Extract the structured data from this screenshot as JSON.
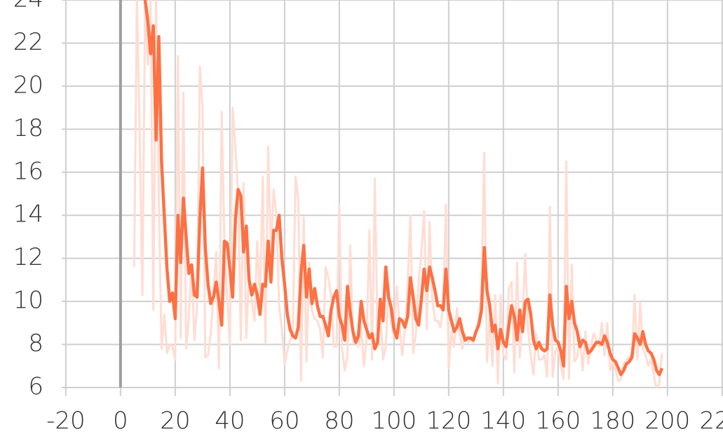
{
  "chart_data": {
    "type": "line",
    "x": [
      5,
      6,
      7,
      8,
      9,
      10,
      11,
      12,
      13,
      14,
      15,
      16,
      17,
      18,
      19,
      20,
      21,
      22,
      23,
      24,
      25,
      26,
      27,
      28,
      29,
      30,
      31,
      32,
      33,
      34,
      35,
      36,
      37,
      38,
      39,
      40,
      41,
      42,
      43,
      44,
      45,
      46,
      47,
      48,
      49,
      50,
      51,
      52,
      53,
      54,
      55,
      56,
      57,
      58,
      59,
      60,
      61,
      62,
      63,
      64,
      65,
      66,
      67,
      68,
      69,
      70,
      71,
      72,
      73,
      74,
      75,
      76,
      77,
      78,
      79,
      80,
      81,
      82,
      83,
      84,
      85,
      86,
      87,
      88,
      89,
      90,
      91,
      92,
      93,
      94,
      95,
      96,
      97,
      98,
      99,
      100,
      101,
      102,
      103,
      104,
      105,
      106,
      107,
      108,
      109,
      110,
      111,
      112,
      113,
      114,
      115,
      116,
      117,
      118,
      119,
      120,
      121,
      122,
      123,
      124,
      125,
      126,
      127,
      128,
      129,
      130,
      131,
      132,
      133,
      134,
      135,
      136,
      137,
      138,
      139,
      140,
      141,
      142,
      143,
      144,
      145,
      146,
      147,
      148,
      149,
      150,
      151,
      152,
      153,
      154,
      155,
      156,
      157,
      158,
      159,
      160,
      161,
      162,
      163,
      164,
      165,
      166,
      167,
      168,
      169,
      170,
      171,
      172,
      173,
      174,
      175,
      176,
      177,
      178,
      179,
      180,
      181,
      182,
      183,
      184,
      185,
      186,
      187,
      188,
      189,
      190,
      191,
      192,
      193,
      194,
      195,
      196,
      197,
      198
    ],
    "series": [
      {
        "color": "#ffddd3",
        "values": [
          11.6,
          24,
          18,
          10.3,
          24,
          21,
          24,
          9.6,
          24,
          15,
          7.8,
          9.4,
          7.6,
          8,
          7.9,
          7.3,
          21.4,
          8.3,
          19.7,
          7.8,
          9.3,
          11.7,
          8.2,
          9.8,
          20.9,
          19,
          7.4,
          7.5,
          8.5,
          10.4,
          12.3,
          6.9,
          18.8,
          12.6,
          10.2,
          8,
          19,
          17.1,
          15.1,
          8.2,
          15.5,
          8.3,
          11.4,
          10,
          9.1,
          12.8,
          10,
          15.8,
          8.1,
          17.2,
          12.2,
          15.2,
          14,
          9.8,
          8.7,
          7.1,
          7.7,
          8.2,
          8.5,
          15.8,
          14.8,
          6.3,
          13.9,
          7.2,
          11.8,
          9.6,
          9.2,
          9.1,
          8.7,
          7.4,
          11.6,
          11.1,
          10.3,
          7.9,
          7.9,
          14.5,
          7.8,
          6.8,
          7.5,
          12.6,
          8.1,
          8.3,
          7.9,
          8.8,
          7,
          8.3,
          13.3,
          7.3,
          15.7,
          8.3,
          9.5,
          7.3,
          7.9,
          10.8,
          9,
          8.4,
          10.7,
          8.9,
          7.5,
          8.7,
          10.8,
          14,
          7.6,
          8.5,
          10.9,
          12.2,
          14.2,
          8.7,
          13.7,
          10.1,
          9.1,
          9.1,
          8.8,
          9.9,
          14.5,
          6.9,
          8.6,
          7.9,
          9.7,
          8.5,
          7.8,
          8.5,
          8.1,
          8.2,
          8.1,
          8.6,
          9.2,
          10.6,
          16.9,
          7.2,
          9.2,
          7,
          10.3,
          6.2,
          10.3,
          7.5,
          7.3,
          10.6,
          10.9,
          6.7,
          11.8,
          7.4,
          9.2,
          12.2,
          8.7,
          7.5,
          6.6,
          8.5,
          7.3,
          7.3,
          7.5,
          6.5,
          14.4,
          6.5,
          7.7,
          7.9,
          7,
          6.4,
          16.5,
          6.4,
          11.7,
          7.2,
          7.4,
          8.4,
          6.8,
          8.6,
          7.1,
          7.9,
          8.5,
          8.2,
          7.9,
          9,
          7.5,
          9,
          6.8,
          7.2,
          6.8,
          6.3,
          6.4,
          7.1,
          7.3,
          7.4,
          7.5,
          10.3,
          7.3,
          9.9,
          7.8,
          7.5,
          7,
          7.3,
          6.6,
          5.9,
          6.2,
          7.6
        ]
      },
      {
        "color": "#ff7043",
        "values": [
          null,
          null,
          null,
          null,
          24,
          23,
          21.5,
          22.8,
          17.5,
          22.3,
          16.5,
          14,
          11.5,
          10,
          10.4,
          9.2,
          14,
          11.8,
          14.8,
          13,
          11.3,
          11.7,
          10.3,
          10.2,
          13.8,
          16.2,
          12.5,
          10.8,
          9.9,
          10.2,
          10.9,
          10,
          8.9,
          12.8,
          12.7,
          11.5,
          10.2,
          13.8,
          15.2,
          14.9,
          12.3,
          13.5,
          11,
          10.3,
          10.8,
          10.3,
          9.4,
          10.8,
          10.7,
          12.8,
          10.9,
          13.3,
          13.3,
          14,
          12,
          10.8,
          9.4,
          8.7,
          8.4,
          8.3,
          8.8,
          11.3,
          12.6,
          10.2,
          11.5,
          9.9,
          10.6,
          9.8,
          9.3,
          9.3,
          8.9,
          8.4,
          9.6,
          10.2,
          10.5,
          9.3,
          8.9,
          8.2,
          10.7,
          9.5,
          8.6,
          8.1,
          8.4,
          10,
          9.1,
          8.7,
          8.3,
          8.5,
          7.8,
          8.1,
          10.1,
          9.1,
          11.6,
          10.2,
          9.7,
          8.7,
          8.3,
          9.2,
          9.1,
          8.8,
          9.3,
          11.1,
          10.2,
          9.2,
          8.9,
          10.1,
          11.5,
          10.5,
          11.6,
          11.1,
          10.5,
          9.8,
          9.8,
          9.6,
          11.5,
          9.6,
          9.1,
          8.6,
          8.8,
          9.2,
          8.6,
          8.2,
          8.3,
          8.3,
          8.2,
          8.6,
          8.9,
          9.6,
          12.5,
          10.5,
          9.8,
          8.6,
          8.9,
          7.8,
          8.7,
          8.1,
          7.9,
          8.9,
          9.8,
          9.3,
          8.2,
          9.6,
          8.6,
          10,
          10.1,
          9.4,
          8.2,
          7.8,
          8.1,
          7.8,
          7.7,
          7.8,
          10.3,
          8.9,
          8.2,
          8.1,
          7.7,
          7,
          10.7,
          9.2,
          10,
          9,
          8.6,
          7.9,
          8.2,
          8.1,
          7.6,
          7.7,
          7.9,
          8.1,
          8.1,
          8,
          8.4,
          8.1,
          7.6,
          7.3,
          7.2,
          6.9,
          6.6,
          6.8,
          7.1,
          7.2,
          7.4,
          8.5,
          8.3,
          8,
          8.6,
          8,
          7.7,
          7.6,
          7.3,
          6.8,
          6.6,
          6.9
        ]
      }
    ],
    "xlim": [
      -21.5,
      220.3
    ],
    "ylim": [
      6,
      24
    ],
    "xticks": [
      -20,
      0,
      20,
      40,
      60,
      80,
      100,
      120,
      140,
      160,
      180,
      200,
      220
    ],
    "yticks": [
      6,
      8,
      10,
      12,
      14,
      16,
      18,
      20,
      22,
      24
    ],
    "grid": true
  }
}
